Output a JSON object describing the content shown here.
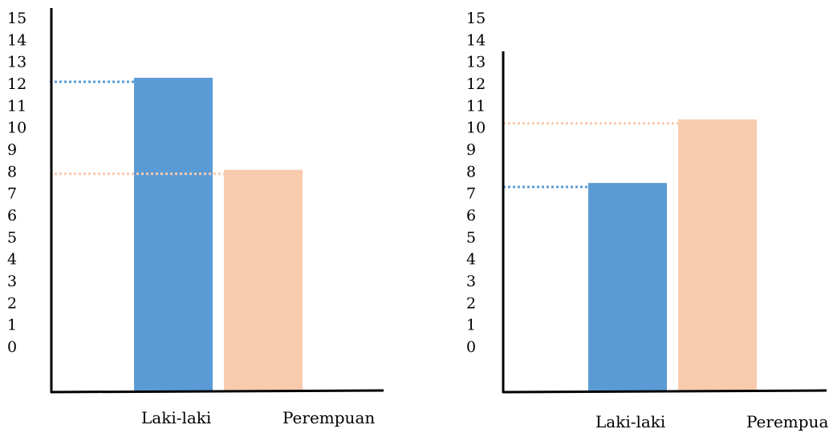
{
  "chart_data": [
    {
      "type": "bar",
      "categories": [
        "Laki-laki",
        "Perempuan"
      ],
      "values": [
        12,
        7.8
      ],
      "colors": [
        "#5b9bd5",
        "#f8cbad"
      ],
      "y_ticks": [
        "0",
        "1",
        "2",
        "3",
        "4",
        "5",
        "6",
        "7",
        "8",
        "9",
        "10",
        "11",
        "12",
        "13",
        "14",
        "15"
      ],
      "ylim": [
        0,
        15
      ],
      "reference_lines": [
        {
          "value": 12,
          "color": "#5b9bd5"
        },
        {
          "value": 7.8,
          "color": "#f8cbad"
        }
      ]
    },
    {
      "type": "bar",
      "categories": [
        "Laki-laki",
        "Perempuan"
      ],
      "values": [
        7.2,
        10.1
      ],
      "colors": [
        "#5b9bd5",
        "#f8cbad"
      ],
      "y_ticks": [
        "0",
        "1",
        "2",
        "3",
        "4",
        "5",
        "6",
        "7",
        "8",
        "9",
        "10",
        "11",
        "12",
        "13",
        "14",
        "15"
      ],
      "ylim": [
        0,
        15
      ],
      "reference_lines": [
        {
          "value": 7.2,
          "color": "#5b9bd5"
        },
        {
          "value": 10.1,
          "color": "#f8cbad"
        }
      ]
    }
  ]
}
